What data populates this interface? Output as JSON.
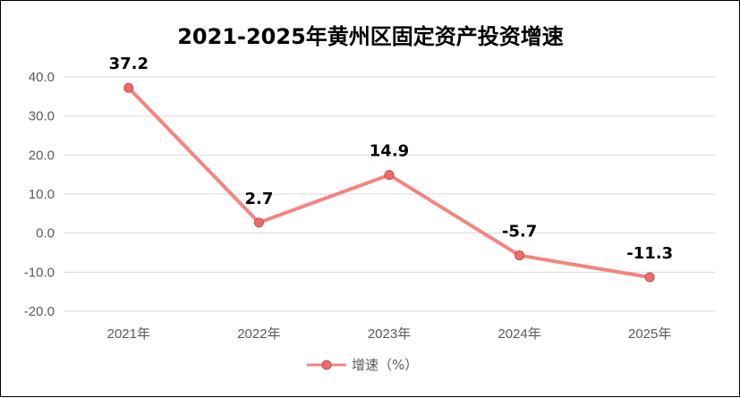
{
  "chart_data": {
    "type": "line",
    "title": "2021-2025年黄州区固定资产投资增速",
    "categories": [
      "2021年",
      "2022年",
      "2023年",
      "2024年",
      "2025年"
    ],
    "series": [
      {
        "name": "增速（%）",
        "values": [
          37.2,
          2.7,
          14.9,
          -5.7,
          -11.3
        ],
        "labels": [
          "37.2",
          "2.7",
          "14.9",
          "-5.7",
          "-11.3"
        ],
        "color": "#f4847f",
        "marker_fill": "#f26b6b"
      }
    ],
    "ylim": [
      -20,
      40
    ],
    "yticks": [
      "40.0",
      "30.0",
      "20.0",
      "10.0",
      "0.0",
      "-10.0",
      "-20.0"
    ],
    "ytick_values": [
      40,
      30,
      20,
      10,
      0,
      -10,
      -20
    ],
    "grid": true,
    "legend_position": "bottom"
  }
}
